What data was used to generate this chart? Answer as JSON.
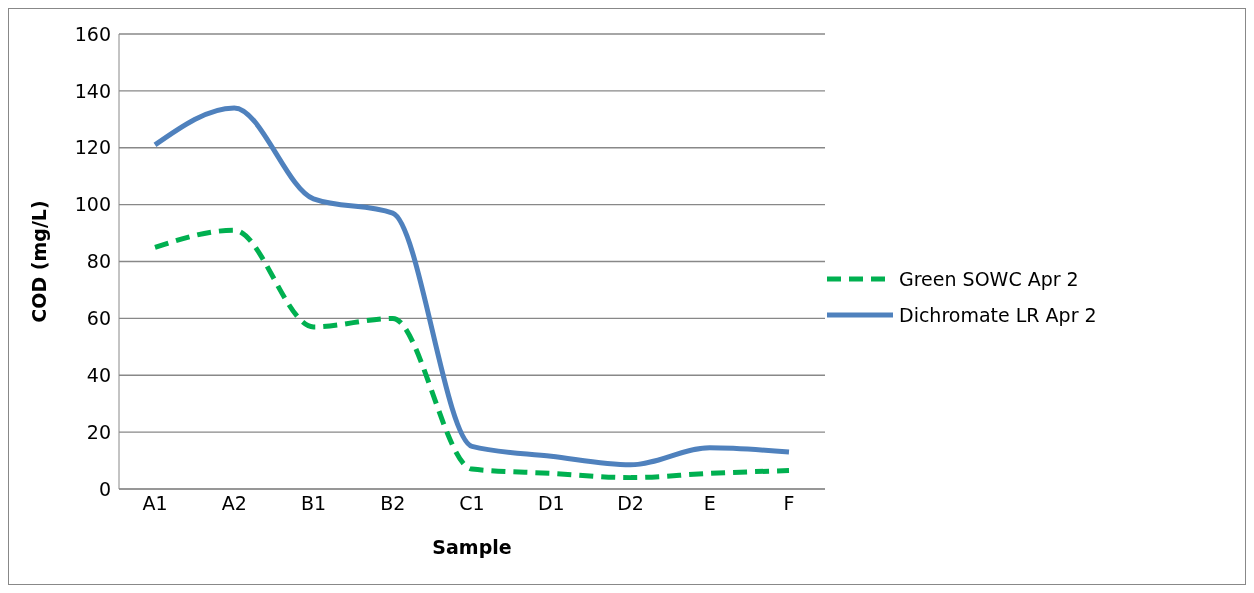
{
  "chart_data": {
    "type": "line",
    "xlabel": "Sample",
    "ylabel": "COD (mg/L)",
    "categories": [
      "A1",
      "A2",
      "B1",
      "B2",
      "C1",
      "D1",
      "D2",
      "E",
      "F"
    ],
    "series": [
      {
        "name": "Green SOWC Apr 2",
        "color": "#00b050",
        "line_style": "dashed",
        "values": [
          85,
          91,
          57,
          60,
          7,
          5.5,
          4,
          5.5,
          6.5
        ]
      },
      {
        "name": "Dichromate LR Apr 2",
        "color": "#4f81bd",
        "line_style": "solid",
        "values": [
          121,
          134,
          102,
          97,
          15,
          11.5,
          8.5,
          14.5,
          13
        ]
      }
    ],
    "ylim": [
      0,
      160
    ],
    "yticks": [
      0,
      20,
      40,
      60,
      80,
      100,
      120,
      140,
      160
    ],
    "grid": "y",
    "legend": "right",
    "marker": "none"
  }
}
